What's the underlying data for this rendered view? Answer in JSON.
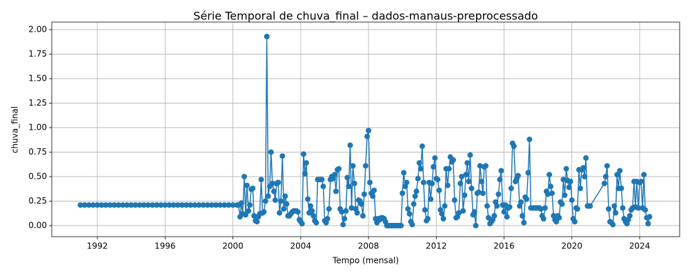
{
  "chart_data": {
    "type": "line",
    "title": "Série Temporal de chuva_final – dados-manaus-preprocessado",
    "xlabel": "Tempo (mensal)",
    "ylabel": "chuva_final",
    "color": "#1f77b4",
    "grid": true,
    "xlim": [
      1989.31,
      2026.36
    ],
    "ylim": [
      -0.113,
      2.077
    ],
    "xticks": [
      1992,
      1996,
      2000,
      2004,
      2008,
      2012,
      2016,
      2020,
      2024
    ],
    "yticks": [
      {
        "value": 0,
        "label": "0.00"
      },
      {
        "value": 0.25,
        "label": "0.25"
      },
      {
        "value": 0.5,
        "label": "0.50"
      },
      {
        "value": 0.75,
        "label": "0.75"
      },
      {
        "value": 1,
        "label": "1.00"
      },
      {
        "value": 1.25,
        "label": "1.25"
      },
      {
        "value": 1.5,
        "label": "1.50"
      },
      {
        "value": 1.75,
        "label": "1.75"
      },
      {
        "value": 2,
        "label": "2.00"
      }
    ],
    "x": [
      1991,
      1991.25,
      1991.5,
      1991.75,
      1992,
      1992.25,
      1992.5,
      1992.75,
      1993,
      1993.25,
      1993.5,
      1993.75,
      1994,
      1994.25,
      1994.5,
      1994.75,
      1995,
      1995.25,
      1995.5,
      1995.75,
      1996,
      1996.25,
      1996.5,
      1996.75,
      1997,
      1997.25,
      1997.5,
      1997.75,
      1998,
      1998.25,
      1998.5,
      1998.75,
      1999,
      1999.25,
      1999.5,
      1999.75,
      2000,
      2000.25,
      2000.33,
      2000.42,
      2000.5,
      2000.58,
      2000.67,
      2000.75,
      2000.83,
      2000.92,
      2001,
      2001.08,
      2001.17,
      2001.25,
      2001.33,
      2001.42,
      2001.5,
      2001.58,
      2001.67,
      2001.75,
      2001.83,
      2001.92,
      2002,
      2002.08,
      2002.17,
      2002.25,
      2002.33,
      2002.42,
      2002.5,
      2002.58,
      2002.67,
      2002.75,
      2002.83,
      2002.92,
      2003,
      2003.08,
      2003.17,
      2003.25,
      2003.33,
      2003.42,
      2003.5,
      2003.58,
      2003.67,
      2003.75,
      2003.83,
      2003.92,
      2004,
      2004.08,
      2004.17,
      2004.25,
      2004.33,
      2004.42,
      2004.5,
      2004.58,
      2004.67,
      2004.75,
      2004.83,
      2004.92,
      2005,
      2005.08,
      2005.17,
      2005.25,
      2005.33,
      2005.42,
      2005.5,
      2005.58,
      2005.67,
      2005.75,
      2005.83,
      2005.92,
      2006,
      2006.08,
      2006.17,
      2006.25,
      2006.33,
      2006.42,
      2006.5,
      2006.58,
      2006.67,
      2006.75,
      2006.83,
      2006.92,
      2007,
      2007.08,
      2007.17,
      2007.25,
      2007.33,
      2007.42,
      2007.5,
      2007.58,
      2007.67,
      2007.75,
      2007.83,
      2007.92,
      2008,
      2008.08,
      2008.17,
      2008.25,
      2008.33,
      2008.42,
      2008.5,
      2008.58,
      2008.67,
      2008.75,
      2008.83,
      2008.92,
      2009,
      2009.08,
      2009.17,
      2009.25,
      2009.33,
      2009.42,
      2009.5,
      2009.58,
      2009.67,
      2009.75,
      2009.83,
      2009.92,
      2010,
      2010.08,
      2010.17,
      2010.25,
      2010.33,
      2010.42,
      2010.5,
      2010.58,
      2010.67,
      2010.75,
      2010.83,
      2010.92,
      2011,
      2011.08,
      2011.17,
      2011.25,
      2011.33,
      2011.42,
      2011.5,
      2011.58,
      2011.67,
      2011.75,
      2011.83,
      2011.92,
      2012,
      2012.08,
      2012.17,
      2012.25,
      2012.33,
      2012.42,
      2012.5,
      2012.58,
      2012.67,
      2012.75,
      2012.83,
      2012.92,
      2013,
      2013.08,
      2013.17,
      2013.25,
      2013.33,
      2013.42,
      2013.5,
      2013.58,
      2013.67,
      2013.75,
      2013.83,
      2013.92,
      2014,
      2014.08,
      2014.17,
      2014.25,
      2014.33,
      2014.42,
      2014.5,
      2014.58,
      2014.67,
      2014.75,
      2014.83,
      2014.92,
      2015,
      2015.08,
      2015.17,
      2015.25,
      2015.33,
      2015.42,
      2015.5,
      2015.58,
      2015.67,
      2015.75,
      2015.83,
      2015.92,
      2016,
      2016.08,
      2016.17,
      2016.25,
      2016.33,
      2016.42,
      2016.5,
      2016.58,
      2016.67,
      2016.75,
      2016.83,
      2016.92,
      2017,
      2017.08,
      2017.17,
      2017.25,
      2017.33,
      2017.42,
      2017.5,
      2017.58,
      2017.67,
      2017.75,
      2017.83,
      2017.92,
      2018,
      2018.08,
      2018.17,
      2018.25,
      2018.33,
      2018.42,
      2018.5,
      2018.58,
      2018.67,
      2018.75,
      2018.83,
      2018.92,
      2019,
      2019.08,
      2019.17,
      2019.25,
      2019.33,
      2019.42,
      2019.5,
      2019.58,
      2019.67,
      2019.75,
      2019.83,
      2019.92,
      2020,
      2020.08,
      2020.17,
      2020.25,
      2020.33,
      2020.42,
      2020.5,
      2020.58,
      2020.67,
      2020.75,
      2020.83,
      2020.92,
      2021,
      2021.08,
      2021.92,
      2022,
      2022.08,
      2022.17,
      2022.25,
      2022.33,
      2022.42,
      2022.5,
      2022.58,
      2022.67,
      2022.75,
      2022.83,
      2022.92,
      2023,
      2023.08,
      2023.17,
      2023.25,
      2023.33,
      2023.42,
      2023.5,
      2023.58,
      2023.67,
      2023.75,
      2023.83,
      2023.92,
      2024,
      2024.08,
      2024.17,
      2024.25,
      2024.33,
      2024.42,
      2024.5,
      2024.58
    ],
    "values": [
      0.21,
      0.21,
      0.21,
      0.21,
      0.21,
      0.21,
      0.21,
      0.21,
      0.21,
      0.21,
      0.21,
      0.21,
      0.21,
      0.21,
      0.21,
      0.21,
      0.21,
      0.21,
      0.21,
      0.21,
      0.21,
      0.21,
      0.21,
      0.21,
      0.21,
      0.21,
      0.21,
      0.21,
      0.21,
      0.21,
      0.21,
      0.21,
      0.21,
      0.21,
      0.21,
      0.21,
      0.21,
      0.21,
      0.21,
      0.09,
      0.23,
      0.12,
      0.5,
      0.11,
      0.41,
      0.15,
      0.21,
      0.37,
      0.38,
      0.1,
      0.05,
      0.04,
      0.09,
      0.12,
      0.47,
      0.13,
      0.14,
      0.25,
      1.93,
      0.3,
      0.4,
      0.75,
      0.43,
      0.35,
      0.26,
      0.43,
      0.44,
      0.13,
      0.25,
      0.71,
      0.17,
      0.3,
      0.22,
      0.1,
      0.1,
      0.12,
      0.14,
      0.15,
      0.15,
      0.15,
      0.14,
      0.06,
      0.04,
      0.02,
      0.73,
      0.53,
      0.64,
      0.27,
      0.13,
      0.2,
      0.15,
      0.1,
      0.05,
      0.03,
      0.47,
      0.47,
      0.47,
      0.47,
      0.4,
      0.05,
      0.03,
      0.07,
      0.17,
      0.47,
      0.5,
      0.48,
      0.52,
      0.35,
      0.57,
      0.58,
      0.17,
      0.14,
      0.01,
      0.07,
      0.15,
      0.49,
      0.4,
      0.82,
      0.18,
      0.61,
      0.43,
      0.17,
      0.13,
      0.26,
      0.25,
      0.22,
      0.1,
      0.32,
      0.61,
      0.91,
      0.97,
      0.44,
      0.33,
      0.3,
      0.36,
      0.07,
      0.03,
      0.07,
      0.06,
      0.08,
      0.08,
      0.07,
      0.04,
      0,
      0,
      0,
      0,
      0,
      0,
      0,
      0,
      0,
      0,
      0,
      0.33,
      0.54,
      0.4,
      0.44,
      0.17,
      0.12,
      0.04,
      0.01,
      0.22,
      0.3,
      0.35,
      0.48,
      0.64,
      0.58,
      0.81,
      0.44,
      0.16,
      0.05,
      0.07,
      0.44,
      0.27,
      0.43,
      0.6,
      0.69,
      0.48,
      0.47,
      0.36,
      0.16,
      0.12,
      0.07,
      0.2,
      0.58,
      0.41,
      0.58,
      0.7,
      0.65,
      0.67,
      0.26,
      0.08,
      0.09,
      0.13,
      0.43,
      0.5,
      0.15,
      0.31,
      0.52,
      0.64,
      0.45,
      0.72,
      0.38,
      0.11,
      0.14,
      0,
      0.33,
      0.34,
      0.61,
      0.45,
      0.33,
      0.6,
      0.61,
      0.2,
      0.08,
      0.02,
      0.04,
      0.06,
      0.1,
      0.24,
      0.2,
      0.32,
      0.47,
      0.56,
      0.21,
      0.14,
      0.21,
      0.09,
      0.18,
      0.19,
      0.38,
      0.84,
      0.81,
      0.45,
      0.48,
      0.51,
      0.2,
      0.24,
      0.1,
      0.03,
      0.29,
      0.27,
      0.54,
      0.88,
      0.18,
      0.18,
      0.18,
      0.18,
      0.18,
      0.18,
      0.18,
      0.17,
      0.1,
      0.07,
      0.18,
      0.35,
      0.32,
      0.52,
      0.4,
      0.33,
      0.1,
      0.06,
      0.04,
      0.1,
      0.08,
      0.24,
      0.22,
      0.47,
      0.31,
      0.58,
      0.46,
      0.39,
      0.45,
      0.26,
      0.07,
      0.04,
      0.18,
      0.17,
      0.57,
      0.38,
      0.57,
      0.59,
      0.5,
      0.69,
      0.2,
      0.2,
      0.2,
      0.43,
      0.5,
      0.61,
      0.17,
      0.04,
      0.03,
      0.01,
      0.2,
      0.13,
      0.52,
      0.38,
      0.56,
      0.38,
      0.18,
      0.07,
      0.04,
      0.02,
      0.06,
      0.1,
      0.16,
      0.18,
      0.45,
      0.19,
      0.45,
      0.18,
      0.44,
      0.45,
      0.18,
      0.52,
      0.16,
      0.08,
      0.02,
      0.09
    ]
  }
}
